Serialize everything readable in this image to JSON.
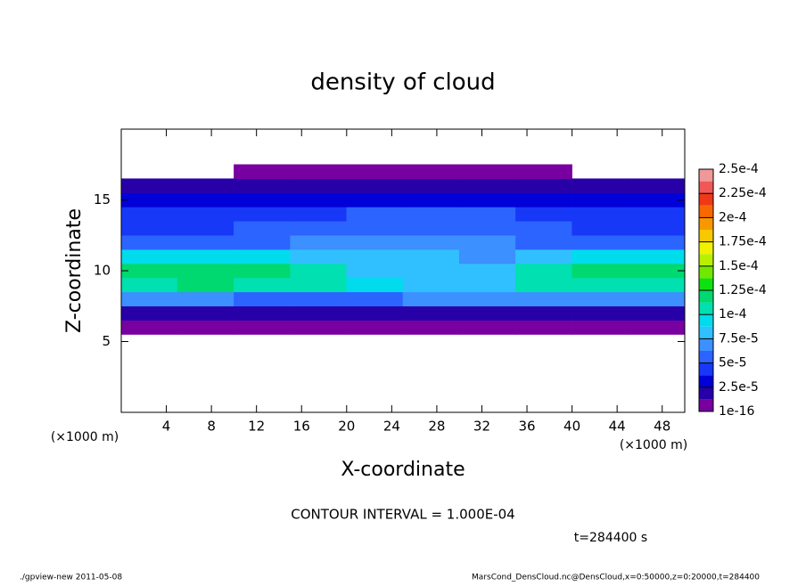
{
  "chart_data": {
    "type": "heatmap",
    "title": "density of cloud",
    "xlabel": "X-coordinate",
    "ylabel": "Z-coordinate",
    "x_unit": "(×1000 m)",
    "y_unit": "(×1000 m)",
    "note": "CONTOUR INTERVAL = 1.000E-04",
    "time": "t=284400 s",
    "footer_left": "./gpview-new   2011-05-08",
    "footer_right": "MarsCond_DensCloud.nc@DensCloud,x=0:50000,z=0:20000,t=284400",
    "x": [
      2.5,
      7.5,
      12.5,
      17.5,
      22.5,
      27.5,
      32.5,
      37.5,
      42.5,
      47.5
    ],
    "y": [
      6,
      7,
      8,
      9,
      10,
      11,
      12,
      13,
      14,
      15,
      16,
      17
    ],
    "values": [
      [
        5e-06,
        5e-06,
        5e-06,
        5e-06,
        5e-06,
        5e-06,
        5e-06,
        5e-06,
        5e-06,
        5e-06
      ],
      [
        2e-05,
        2e-05,
        2e-05,
        2e-05,
        2e-05,
        2e-05,
        2e-05,
        2e-05,
        2e-05,
        2e-05
      ],
      [
        6.5e-05,
        6.5e-05,
        6e-05,
        6e-05,
        6e-05,
        7e-05,
        7e-05,
        6.5e-05,
        6.5e-05,
        6.5e-05
      ],
      [
        0.00011,
        0.000115,
        0.00011,
        0.000105,
        9e-05,
        8e-05,
        8.5e-05,
        0.000105,
        0.00011,
        0.00011
      ],
      [
        0.000115,
        0.00012,
        0.000115,
        0.000105,
        8.5e-05,
        7.5e-05,
        8e-05,
        0.0001,
        0.000115,
        0.00012
      ],
      [
        9.5e-05,
        9e-05,
        9e-05,
        8.5e-05,
        8e-05,
        7.5e-05,
        7e-05,
        8e-05,
        9e-05,
        9.5e-05
      ],
      [
        5.5e-05,
        5.5e-05,
        6e-05,
        6.5e-05,
        6.5e-05,
        7e-05,
        6.5e-05,
        6e-05,
        5.5e-05,
        5.5e-05
      ],
      [
        4.5e-05,
        4.5e-05,
        5e-05,
        5.5e-05,
        5.5e-05,
        6e-05,
        5.5e-05,
        5e-05,
        4.5e-05,
        4.5e-05
      ],
      [
        4e-05,
        4e-05,
        4.5e-05,
        4.5e-05,
        5e-05,
        5e-05,
        5e-05,
        4.5e-05,
        4e-05,
        4e-05
      ],
      [
        3e-05,
        3e-05,
        3.5e-05,
        3.5e-05,
        3.5e-05,
        3.5e-05,
        3.5e-05,
        3.5e-05,
        3e-05,
        3e-05
      ],
      [
        1.5e-05,
        1.5e-05,
        1.5e-05,
        1.5e-05,
        1.5e-05,
        1.5e-05,
        1.5e-05,
        1.5e-05,
        1.5e-05,
        1.5e-05
      ],
      [
        0,
        0,
        5e-06,
        5e-06,
        5e-06,
        5e-06,
        5e-06,
        5e-06,
        0,
        0
      ]
    ],
    "xlim": [
      0,
      50
    ],
    "xticks": [
      4,
      8,
      12,
      16,
      20,
      24,
      28,
      32,
      36,
      40,
      44,
      48
    ],
    "ylim": [
      0,
      20
    ],
    "yticks": [
      5,
      10,
      15
    ],
    "colorbar_ticks": [
      {
        "value": 1e-16,
        "label": "1e-16"
      },
      {
        "value": 2.5e-05,
        "label": "2.5e-5"
      },
      {
        "value": 5e-05,
        "label": "5e-5"
      },
      {
        "value": 7.5e-05,
        "label": "7.5e-5"
      },
      {
        "value": 0.0001,
        "label": "1e-4"
      },
      {
        "value": 0.000125,
        "label": "1.25e-4"
      },
      {
        "value": 0.00015,
        "label": "1.5e-4"
      },
      {
        "value": 0.000175,
        "label": "1.75e-4"
      },
      {
        "value": 0.0002,
        "label": "2e-4"
      },
      {
        "value": 0.000225,
        "label": "2.25e-4"
      },
      {
        "value": 0.00025,
        "label": "2.5e-4"
      }
    ],
    "colors": [
      "#7800a0",
      "#2800a8",
      "#0000d8",
      "#1838f8",
      "#2c64ff",
      "#3c90ff",
      "#30c0ff",
      "#00dcec",
      "#00e0b0",
      "#00d870",
      "#10e010",
      "#70e800",
      "#b8f000",
      "#f0f000",
      "#f8c800",
      "#f89800",
      "#f86800",
      "#f03818",
      "#f05858",
      "#f09898"
    ]
  }
}
